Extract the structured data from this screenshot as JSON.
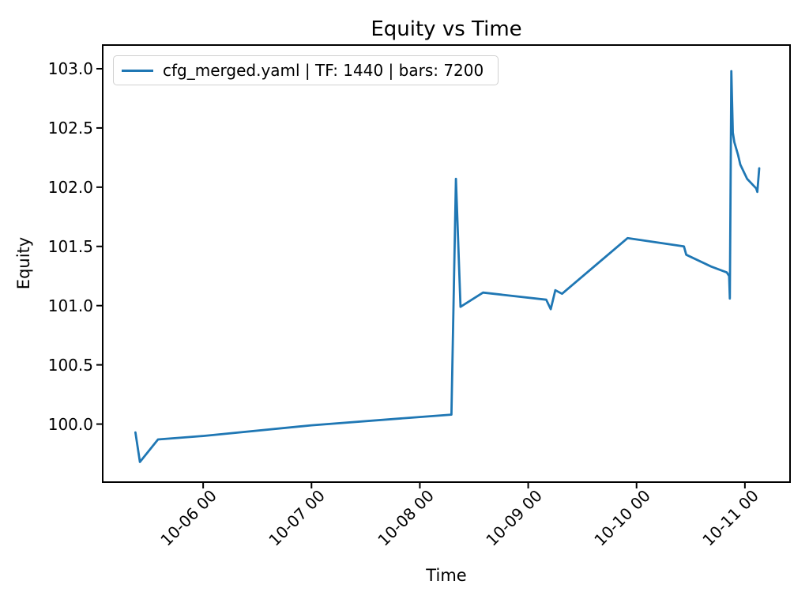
{
  "figure": {
    "title": "Equity vs Time",
    "xlabel": "Time",
    "ylabel": "Equity"
  },
  "legend": {
    "entries": [
      {
        "label": "cfg_merged.yaml | TF: 1440 | bars: 7200",
        "color": "#1f77b4"
      }
    ]
  },
  "chart_data": {
    "type": "line",
    "title": "Equity vs Time",
    "xlabel": "Time",
    "ylabel": "Equity",
    "grid": false,
    "legend_position": "upper left",
    "line_color": "#1f77b4",
    "xlim": [
      "10-05 01:45",
      "10-11 10:00"
    ],
    "ylim": [
      99.51,
      103.2
    ],
    "x_ticks": [
      {
        "label": "10-06 00",
        "t": "10-06 00:00"
      },
      {
        "label": "10-07 00",
        "t": "10-07 00:00"
      },
      {
        "label": "10-08 00",
        "t": "10-08 00:00"
      },
      {
        "label": "10-09 00",
        "t": "10-09 00:00"
      },
      {
        "label": "10-10 00",
        "t": "10-10 00:00"
      },
      {
        "label": "10-11 00",
        "t": "10-11 00:00"
      }
    ],
    "y_ticks": [
      100.0,
      100.5,
      101.0,
      101.5,
      102.0,
      102.5,
      103.0
    ],
    "series": [
      {
        "name": "cfg_merged.yaml | TF: 1440 | bars: 7200",
        "color": "#1f77b4",
        "points": [
          {
            "t": "10-05 09:00",
            "v": 99.93
          },
          {
            "t": "10-05 10:00",
            "v": 99.68
          },
          {
            "t": "10-05 14:00",
            "v": 99.87
          },
          {
            "t": "10-06 00:00",
            "v": 99.9
          },
          {
            "t": "10-07 00:00",
            "v": 99.99
          },
          {
            "t": "10-08 00:00",
            "v": 100.06
          },
          {
            "t": "10-08 07:00",
            "v": 100.08
          },
          {
            "t": "10-08 08:00",
            "v": 102.07
          },
          {
            "t": "10-08 09:00",
            "v": 100.99
          },
          {
            "t": "10-08 14:00",
            "v": 101.11
          },
          {
            "t": "10-09 04:00",
            "v": 101.05
          },
          {
            "t": "10-09 05:00",
            "v": 100.97
          },
          {
            "t": "10-09 06:00",
            "v": 101.13
          },
          {
            "t": "10-09 07:30",
            "v": 101.1
          },
          {
            "t": "10-09 22:00",
            "v": 101.57
          },
          {
            "t": "10-10 10:30",
            "v": 101.5
          },
          {
            "t": "10-10 11:00",
            "v": 101.43
          },
          {
            "t": "10-10 16:30",
            "v": 101.33
          },
          {
            "t": "10-10 20:00",
            "v": 101.28
          },
          {
            "t": "10-10 20:30",
            "v": 101.25
          },
          {
            "t": "10-10 20:40",
            "v": 101.06
          },
          {
            "t": "10-10 21:00",
            "v": 102.98
          },
          {
            "t": "10-10 21:20",
            "v": 102.46
          },
          {
            "t": "10-10 21:40",
            "v": 102.38
          },
          {
            "t": "10-10 22:30",
            "v": 102.27
          },
          {
            "t": "10-10 23:00",
            "v": 102.19
          },
          {
            "t": "10-11 00:30",
            "v": 102.07
          },
          {
            "t": "10-11 02:30",
            "v": 101.99
          },
          {
            "t": "10-11 02:45",
            "v": 101.96
          },
          {
            "t": "10-11 03:10",
            "v": 102.16
          }
        ]
      }
    ]
  }
}
